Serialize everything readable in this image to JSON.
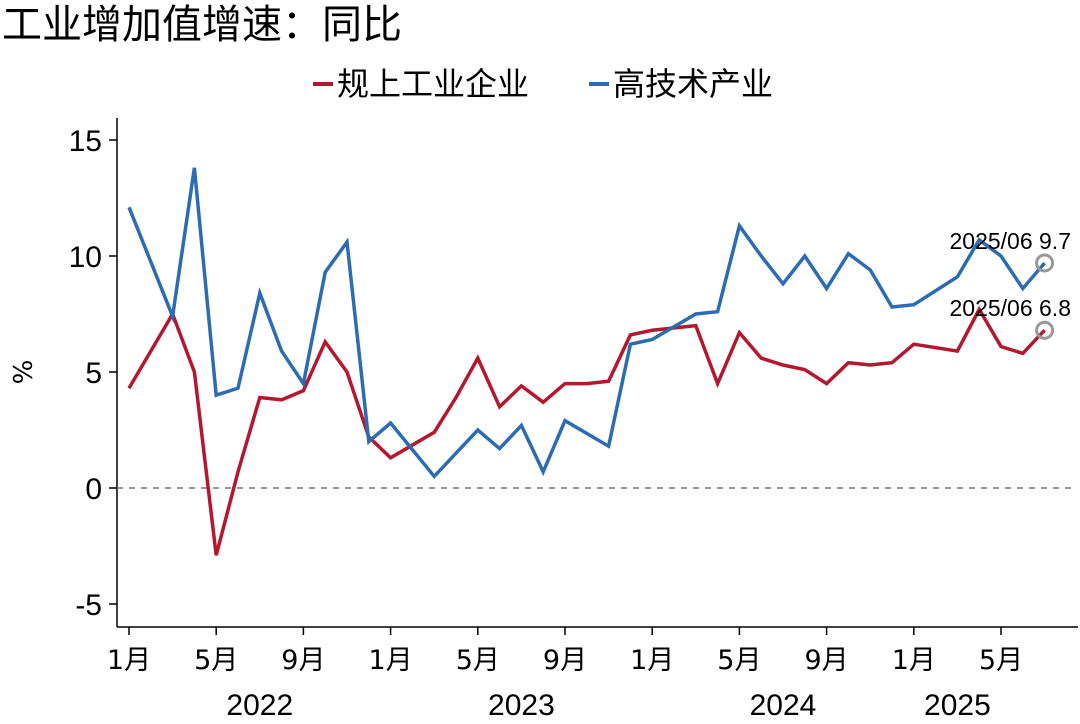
{
  "chart_data": {
    "type": "line",
    "title": "工业增加值增速：同比",
    "ylabel": "%",
    "xlabel": "",
    "ylim": [
      -6,
      16
    ],
    "yticks": [
      -5,
      0,
      5,
      10,
      15
    ],
    "reference_line": 0,
    "grid": false,
    "legend_position": "top-center",
    "x": [
      "2022-01",
      "2022-02",
      "2022-03",
      "2022-04",
      "2022-05",
      "2022-06",
      "2022-07",
      "2022-08",
      "2022-09",
      "2022-10",
      "2022-11",
      "2022-12",
      "2023-01",
      "2023-02",
      "2023-03",
      "2023-04",
      "2023-05",
      "2023-06",
      "2023-07",
      "2023-08",
      "2023-09",
      "2023-10",
      "2023-11",
      "2023-12",
      "2024-01",
      "2024-02",
      "2024-03",
      "2024-04",
      "2024-05",
      "2024-06",
      "2024-07",
      "2024-08",
      "2024-09",
      "2024-10",
      "2024-11",
      "2024-12",
      "2025-01",
      "2025-02",
      "2025-03",
      "2025-04",
      "2025-05",
      "2025-06"
    ],
    "x_tick_labels": [
      "1月",
      "5月",
      "9月",
      "1月",
      "5月",
      "9月",
      "1月",
      "5月",
      "9月",
      "1月",
      "5月"
    ],
    "x_tick_months": [
      "2022-01",
      "2022-05",
      "2022-09",
      "2023-01",
      "2023-05",
      "2023-09",
      "2024-01",
      "2024-05",
      "2024-09",
      "2025-01",
      "2025-05"
    ],
    "year_labels": [
      {
        "text": "2022",
        "month": "2022-07"
      },
      {
        "text": "2023",
        "month": "2023-07"
      },
      {
        "text": "2024",
        "month": "2024-07"
      },
      {
        "text": "2025",
        "month": "2025-03"
      }
    ],
    "series": [
      {
        "name": "规上工业企业",
        "color": "#b5172f",
        "points": [
          [
            "2022-01",
            4.3
          ],
          [
            "2022-03",
            7.5
          ],
          [
            "2022-04",
            5.0
          ],
          [
            "2022-05",
            -2.9
          ],
          [
            "2022-06",
            0.7
          ],
          [
            "2022-07",
            3.9
          ],
          [
            "2022-08",
            3.8
          ],
          [
            "2022-09",
            4.2
          ],
          [
            "2022-10",
            6.3
          ],
          [
            "2022-11",
            5.0
          ],
          [
            "2022-12",
            2.2
          ],
          [
            "2023-01",
            1.3
          ],
          [
            "2023-03",
            2.4
          ],
          [
            "2023-04",
            3.9
          ],
          [
            "2023-05",
            5.6
          ],
          [
            "2023-06",
            3.5
          ],
          [
            "2023-07",
            4.4
          ],
          [
            "2023-08",
            3.7
          ],
          [
            "2023-09",
            4.5
          ],
          [
            "2023-10",
            4.5
          ],
          [
            "2023-11",
            4.6
          ],
          [
            "2023-12",
            6.6
          ],
          [
            "2024-01",
            6.8
          ],
          [
            "2024-03",
            7.0
          ],
          [
            "2024-04",
            4.5
          ],
          [
            "2024-05",
            6.7
          ],
          [
            "2024-06",
            5.6
          ],
          [
            "2024-07",
            5.3
          ],
          [
            "2024-08",
            5.1
          ],
          [
            "2024-09",
            4.5
          ],
          [
            "2024-10",
            5.4
          ],
          [
            "2024-11",
            5.3
          ],
          [
            "2024-12",
            5.4
          ],
          [
            "2025-01",
            6.2
          ],
          [
            "2025-03",
            5.9
          ],
          [
            "2025-04",
            7.7
          ],
          [
            "2025-05",
            6.1
          ],
          [
            "2025-06",
            5.8
          ],
          [
            "2025-07",
            6.8
          ]
        ]
      },
      {
        "name": "高技术产业",
        "color": "#2b6cb3",
        "points": [
          [
            "2022-01",
            12.1
          ],
          [
            "2022-03",
            7.4
          ],
          [
            "2022-04",
            13.8
          ],
          [
            "2022-05",
            4.0
          ],
          [
            "2022-06",
            4.3
          ],
          [
            "2022-07",
            8.4
          ],
          [
            "2022-08",
            5.9
          ],
          [
            "2022-09",
            4.5
          ],
          [
            "2022-10",
            9.3
          ],
          [
            "2022-11",
            10.6
          ],
          [
            "2022-12",
            2.0
          ],
          [
            "2023-01",
            2.8
          ],
          [
            "2023-03",
            0.5
          ],
          [
            "2023-05",
            2.5
          ],
          [
            "2023-06",
            1.7
          ],
          [
            "2023-07",
            2.7
          ],
          [
            "2023-08",
            0.7
          ],
          [
            "2023-09",
            2.9
          ],
          [
            "2023-11",
            1.8
          ],
          [
            "2023-12",
            6.2
          ],
          [
            "2024-01",
            6.4
          ],
          [
            "2024-03",
            7.5
          ],
          [
            "2024-04",
            7.6
          ],
          [
            "2024-05",
            11.3
          ],
          [
            "2024-06",
            10.0
          ],
          [
            "2024-07",
            8.8
          ],
          [
            "2024-08",
            10.0
          ],
          [
            "2024-09",
            8.6
          ],
          [
            "2024-10",
            10.1
          ],
          [
            "2024-11",
            9.4
          ],
          [
            "2024-12",
            7.8
          ],
          [
            "2025-01",
            7.9
          ],
          [
            "2025-03",
            9.1
          ],
          [
            "2025-04",
            10.7
          ],
          [
            "2025-05",
            10.0
          ],
          [
            "2025-06",
            8.6
          ],
          [
            "2025-07",
            9.7
          ]
        ]
      }
    ],
    "annotations": [
      {
        "text": "2025/06 9.7",
        "series": 1,
        "month": "2025-07",
        "value": 9.7
      },
      {
        "text": "2025/06 6.8",
        "series": 0,
        "month": "2025-07",
        "value": 6.8
      }
    ]
  }
}
